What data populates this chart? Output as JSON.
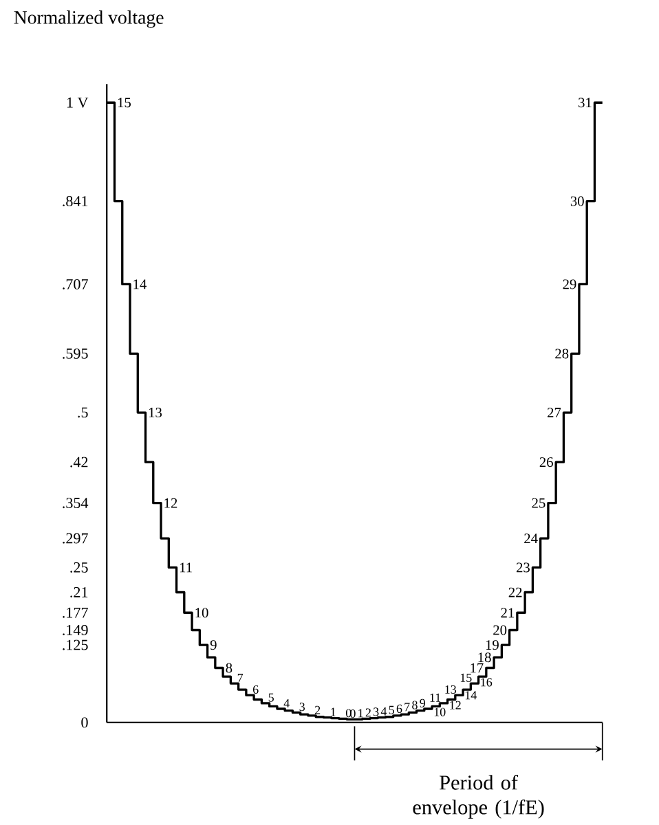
{
  "chart_data": {
    "type": "step",
    "ylabel": "Normalized voltage",
    "categories": [
      null,
      null,
      null,
      null,
      null,
      null,
      null,
      null,
      null,
      null,
      null,
      null,
      null,
      null,
      null,
      null,
      null,
      null,
      null,
      null,
      null,
      null,
      null,
      null,
      null,
      null,
      null,
      null,
      null,
      null,
      null,
      null,
      null,
      null,
      null,
      null,
      null,
      null,
      null,
      null,
      null,
      null,
      null,
      null,
      null,
      null,
      null,
      null,
      null,
      null,
      null,
      null,
      null,
      null,
      null,
      null,
      null,
      null,
      null,
      null,
      null,
      null,
      null,
      null
    ],
    "values": [
      1,
      0.841,
      0.707,
      0.595,
      0.5,
      0.42,
      0.354,
      0.297,
      0.25,
      0.21,
      0.177,
      0.149,
      0.125,
      0.105,
      0.088,
      0.074,
      0.063,
      0.053,
      0.044,
      0.037,
      0.031,
      0.026,
      0.022,
      0.019,
      0.016,
      0.013,
      0.011,
      0.009,
      0.008,
      0.007,
      0.006,
      0.005,
      0.005,
      0.006,
      0.007,
      0.008,
      0.009,
      0.011,
      0.013,
      0.016,
      0.019,
      0.022,
      0.026,
      0.031,
      0.037,
      0.044,
      0.053,
      0.063,
      0.074,
      0.088,
      0.105,
      0.125,
      0.149,
      0.177,
      0.21,
      0.25,
      0.297,
      0.354,
      0.42,
      0.5,
      0.595,
      0.707,
      0.841,
      1
    ],
    "annotations": [
      "Period of envelope (1/fE)",
      "15",
      "14",
      "13",
      "12",
      "11",
      "10",
      "9",
      "8",
      "7",
      "6",
      "5",
      "4",
      "3",
      "2",
      "1",
      "0",
      "0",
      "1",
      "2",
      "3",
      "4",
      "5",
      "6",
      "7",
      "8",
      "9",
      "10",
      "11",
      "12",
      "13",
      "14",
      "15",
      "16",
      "17",
      "18",
      "19",
      "20",
      "21",
      "22",
      "23",
      "24",
      "25",
      "26",
      "27",
      "28",
      "29",
      "30",
      "31"
    ],
    "color": "#000000",
    "ylim": [
      0,
      1.03
    ],
    "yticks": [
      0,
      {
        "value": 0.125,
        "label": ".125"
      },
      {
        "value": 0.149,
        "label": ".149"
      },
      {
        "value": 0.177,
        "label": ".177"
      },
      {
        "value": 0.21,
        "label": ".21"
      },
      {
        "value": 0.25,
        "label": ".25"
      },
      {
        "value": 0.297,
        "label": ".297"
      },
      {
        "value": 0.354,
        "label": ".354"
      },
      {
        "value": 0.42,
        "label": ".42"
      },
      {
        "value": 0.5,
        "label": ".5"
      },
      {
        "value": 0.595,
        "label": ".595"
      },
      {
        "value": 0.707,
        "label": ".707"
      },
      {
        "value": 0.841,
        "label": ".841"
      },
      {
        "value": 1,
        "label": "1 V"
      }
    ],
    "tick_labels": "y"
  }
}
